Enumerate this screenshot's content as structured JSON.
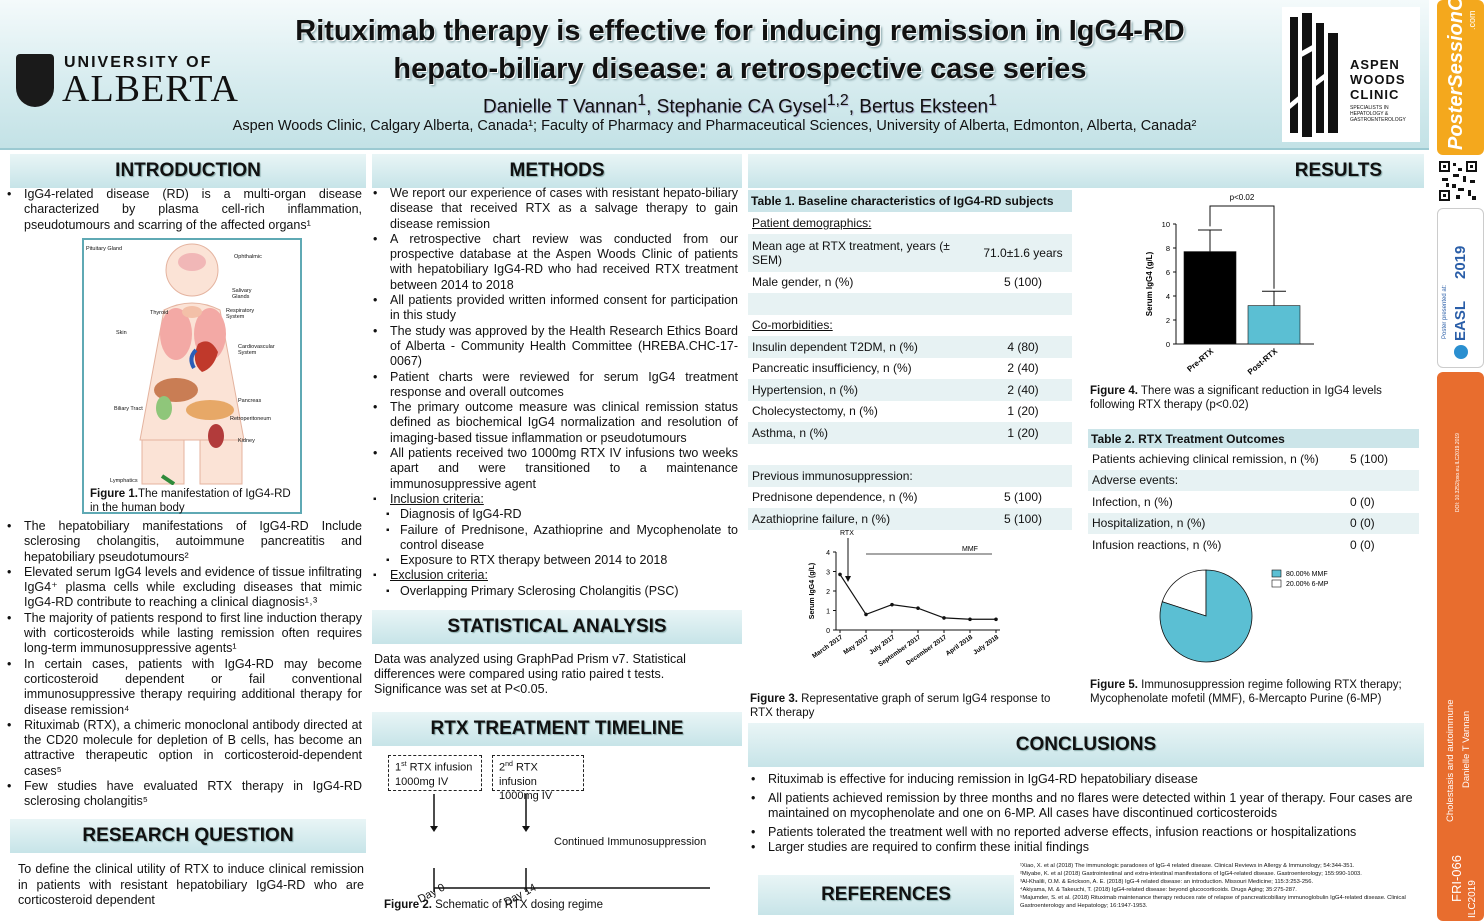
{
  "header": {
    "title_line1": "Rituximab therapy is effective for inducing remission in IgG4-RD",
    "title_line2": "hepato-biliary disease: a retrospective case series",
    "authors_html_plain": "Danielle T Vannan1, Stephanie CA Gysel1,2, Bertus Eksteen1",
    "affiliations": "Aspen Woods Clinic, Calgary Alberta, Canada¹; Faculty of Pharmacy and Pharmaceutical Sciences, University of Alberta, Edmonton, Alberta, Canada²",
    "ua_small": "UNIVERSITY OF",
    "ua_big": "ALBERTA",
    "aspen_name": [
      "ASPEN",
      "WOODS",
      "CLINIC"
    ],
    "aspen_sub": "SPECIALISTS IN HEPATOLOGY & GASTROENTEROLOGY"
  },
  "authors": [
    {
      "name": "Danielle T Vannan",
      "sup": "1"
    },
    {
      "name": "Stephanie CA Gysel",
      "sup": "1,2"
    },
    {
      "name": "Bertus Eksteen",
      "sup": "1"
    }
  ],
  "side": {
    "brand": "PosterSessionOnline",
    "brand_url": ".com",
    "year": "2019",
    "easl": "EASL",
    "presented": "Poster presented at:",
    "doi": "DOI: 10.3252/pso.eu.ILC2019.2019",
    "topic": "Cholestasis and autoimmune",
    "author": "Danielle T Vannan",
    "code": "FRI-066",
    "conf": "ILC2019"
  },
  "intro": {
    "heading": "INTRODUCTION",
    "bullets_top": [
      "IgG4-related disease (RD) is a multi-organ disease characterized by plasma cell-rich inflammation, pseudotumours and scarring of the affected organs¹"
    ],
    "figure_labels": [
      "Pituitary Gland",
      "Ophthalmic",
      "Salivary Glands",
      "Thyroid",
      "Respiratory System",
      "Skin",
      "Cardiovascular System",
      "Pancreas",
      "Biliary Tract",
      "Retroperitoneum",
      "Kidney",
      "Lymphatics"
    ],
    "figure_caption_bold": "Figure 1.",
    "figure_caption": "The manifestation of IgG4-RD in the human body",
    "bullets_bottom": [
      "The hepatobiliary manifestations of IgG4-RD Include sclerosing cholangitis, autoimmune pancreatitis and hepatobiliary pseudotumours²",
      "Elevated serum IgG4 levels and evidence of tissue infiltrating IgG4⁺ plasma cells while excluding diseases that mimic IgG4-RD contribute to reaching a clinical diagnosis¹˒³",
      "The majority of patients respond to first line induction therapy with corticosteroids while lasting remission often requires long-term immunosuppressive agents¹",
      "In certain cases, patients with IgG4-RD may become corticosteroid dependent or fail conventional immunosuppressive therapy requiring additional therapy for disease remission⁴",
      "Rituximab (RTX), a chimeric monoclonal antibody directed at the CD20 molecule for depletion of B cells, has become an attractive therapeutic option in corticosteroid-dependent cases⁵",
      "Few studies have evaluated RTX therapy in IgG4-RD sclerosing cholangitis⁵"
    ]
  },
  "research": {
    "heading": "RESEARCH QUESTION",
    "text": "To define the clinical utility of RTX to induce clinical remission in patients with resistant hepatobiliary IgG4-RD who are corticosteroid dependent"
  },
  "methods": {
    "heading": "METHODS",
    "bullets": [
      "We report our experience of cases with resistant hepato-biliary disease that received RTX as a salvage therapy to gain disease remission",
      "A retrospective chart review was conducted from our prospective database at the Aspen Woods Clinic of patients with hepatobiliary IgG4-RD who had received RTX treatment between 2014 to 2018",
      "All patients provided written informed consent for participation in this study",
      "The study was approved by the Health Research Ethics Board of Alberta - Community Health Committee (HREBA.CHC-17-0067)",
      "Patient charts were reviewed for serum IgG4 treatment response and overall outcomes",
      "The primary outcome measure was clinical remission status defined as biochemical IgG4 normalization and resolution of imaging-based tissue inflammation or pseudotumours",
      "All patients received two 1000mg RTX IV infusions two weeks apart and were transitioned to a maintenance immunosuppressive agent"
    ],
    "inclusion_label": "Inclusion criteria:",
    "inclusion": [
      "Diagnosis of IgG4-RD",
      "Failure of Prednisone, Azathioprine and Mycophenolate to control disease",
      "Exposure to RTX therapy between 2014 to 2018"
    ],
    "exclusion_label": "Exclusion criteria:",
    "exclusion": [
      "Overlapping Primary Sclerosing Cholangitis (PSC)"
    ]
  },
  "stats": {
    "heading": "STATISTICAL ANALYSIS",
    "text": "Data was analyzed using GraphPad Prism v7. Statistical differences were compared using ratio paired t tests. Significance was set at P<0.05."
  },
  "timeline": {
    "heading": "RTX TREATMENT TIMELINE",
    "box1_sup": "st",
    "box1_num": "1",
    "box1_line1": " RTX infusion",
    "box1_line2": "1000mg IV",
    "box2_sup": "nd",
    "box2_num": "2",
    "box2_line1": " RTX infusion",
    "box2_line2": "1000mg IV",
    "continued": "Continued Immunosuppression",
    "day0": "Day 0",
    "day14": "Day 14",
    "caption_bold": "Figure 2.",
    "caption": " Schematic of RTX dosing regime"
  },
  "results": {
    "heading": "RESULTS",
    "table1": {
      "title": "Table 1. Baseline characteristics of IgG4-RD subjects",
      "rows": [
        {
          "label": "Patient demographics:",
          "value": "",
          "underline": true
        },
        {
          "label": "Mean age at RTX treatment, years (± SEM)",
          "value": "71.0±1.6 years"
        },
        {
          "label": "Male gender, n (%)",
          "value": "5 (100)"
        },
        {
          "label": "",
          "value": ""
        },
        {
          "label": "Co-morbidities:",
          "value": "",
          "underline": true
        },
        {
          "label": "Insulin dependent T2DM, n (%)",
          "value": "4 (80)"
        },
        {
          "label": "Pancreatic insufficiency, n (%)",
          "value": "2 (40)"
        },
        {
          "label": "Hypertension, n (%)",
          "value": "2 (40)"
        },
        {
          "label": "Cholecystectomy, n (%)",
          "value": "1 (20)"
        },
        {
          "label": "Asthma, n (%)",
          "value": "1 (20)"
        },
        {
          "label": "",
          "value": ""
        },
        {
          "label": "Previous immunosuppression:",
          "value": ""
        },
        {
          "label": "Prednisone dependence, n (%)",
          "value": "5 (100)"
        },
        {
          "label": "Azathioprine failure, n (%)",
          "value": "5 (100)"
        }
      ]
    },
    "table2": {
      "title": "Table 2. RTX Treatment Outcomes",
      "rows": [
        {
          "label": "Patients achieving clinical remission, n (%)",
          "value": "5 (100)"
        },
        {
          "label": "Adverse events:",
          "value": ""
        },
        {
          "label": "Infection, n (%)",
          "value": "0 (0)"
        },
        {
          "label": "Hospitalization, n (%)",
          "value": "0 (0)"
        },
        {
          "label": "Infusion reactions, n (%)",
          "value": "0 (0)"
        }
      ]
    },
    "fig3_caption_bold": "Figure 3.",
    "fig3_caption": " Representative graph of serum IgG4 response to RTX therapy",
    "fig4_caption_bold": "Figure 4.",
    "fig4_caption": " There was a significant reduction in IgG4 levels following RTX therapy (p<0.02)",
    "fig5_caption_bold": "Figure 5.",
    "fig5_caption": " Immunosuppression regime following RTX therapy; Mycophenolate mofetil (MMF), 6-Mercapto Purine (6-MP)"
  },
  "chart_data": [
    {
      "type": "line",
      "ylabel": "Serum IgG4 (g/L)",
      "ylim": [
        0,
        4
      ],
      "yticks": [
        0,
        1,
        2,
        3,
        4
      ],
      "categories": [
        "March 2017",
        "May 2017",
        "July 2017",
        "September 2017",
        "December 2017",
        "April 2018",
        "July 2018"
      ],
      "values": [
        2.85,
        0.8,
        1.3,
        1.12,
        0.62,
        0.55,
        0.55
      ],
      "annotations": [
        "RTX",
        "MMF"
      ],
      "colors": {
        "line": "#111111"
      }
    },
    {
      "type": "bar",
      "ylabel": "Serum IgG4 (g/L)",
      "ylim": [
        0,
        10
      ],
      "yticks": [
        0,
        2,
        4,
        6,
        8,
        10
      ],
      "categories": [
        "Pre-RTX",
        "Post-RTX"
      ],
      "values": [
        7.7,
        3.2
      ],
      "errors": [
        1.8,
        1.2
      ],
      "annotation": "p<0.02",
      "colors": {
        "Pre-RTX": "#000000",
        "Post-RTX": "#5bbfd3"
      }
    },
    {
      "type": "pie",
      "categories": [
        "MMF",
        "6-MP"
      ],
      "values": [
        80,
        20
      ],
      "legend": [
        "80.00%  MMF",
        "20.00%  6-MP"
      ],
      "legend_position": "top-right",
      "colors": {
        "MMF": "#5bbfd3",
        "6-MP": "#ffffff"
      }
    }
  ],
  "conclusions": {
    "heading": "CONCLUSIONS",
    "bullets": [
      "Rituximab is effective for inducing remission in IgG4-RD hepatobiliary disease",
      "All patients achieved remission by three months and no flares were detected within 1 year of therapy. Four cases are maintained on mycophenolate and one on 6-MP. All cases have discontinued corticosteroids",
      "Patients tolerated the treatment well with no reported adverse effects, infusion reactions or hospitalizations",
      "Larger studies are required to confirm these initial findings"
    ]
  },
  "references": {
    "heading": "REFERENCES",
    "items": [
      "¹Xiao, X. et al (2018) The immunologic paradoxes of IgG-4 related disease. Clinical Reviews in Allergy & Immunology; 54:344-351.",
      "²Miyabe, K. et al (2018) Gastrointestinal and extra-intestinal manifestations of IgG4-related disease. Gastroenterology; 155:990-1003.",
      "³Al-Khalili, O.M. & Erickson, A. E. (2018) IgG-4 related disease: an introduction. Missouri Medicine; 115:3:253-256.",
      "⁴Akiyama, M. & Takeuchi, T. (2018) IgG4-related disease: beyond glucocorticoids. Drugs Aging; 35:275-287.",
      "⁵Majumder, S. et al. (2018) Rituximab maintenance therapy reduces rate of relapse of pancreaticobiliary immunoglobulin IgG4-related disease. Clinical Gastroenterology and Hepatology; 16:1947-1953."
    ]
  }
}
